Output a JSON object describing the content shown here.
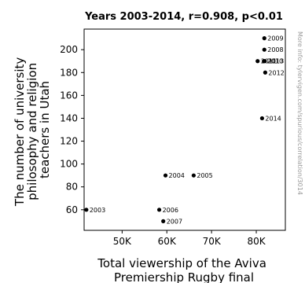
{
  "chart_data": {
    "type": "scatter",
    "title": "Years 2003-2014, r=0.908, p<0.01",
    "xlabel": [
      "Total viewership of the Aviva",
      "Premiership Rugby final"
    ],
    "ylabel": [
      "The number of university",
      "philosophy and religion",
      "teachers in Utah"
    ],
    "xlim": [
      41500,
      86500
    ],
    "ylim": [
      42,
      218
    ],
    "x_ticks": [
      50000,
      60000,
      70000,
      80000
    ],
    "x_tick_labels": [
      "50K",
      "60K",
      "70K",
      "80K"
    ],
    "y_ticks": [
      60,
      80,
      100,
      120,
      140,
      160,
      180,
      200
    ],
    "y_tick_labels": [
      "60",
      "80",
      "100",
      "120",
      "140",
      "160",
      "180",
      "200"
    ],
    "grid": false,
    "point_color": "#000000",
    "points": [
      {
        "label": "2003",
        "x": 42000,
        "y": 60
      },
      {
        "label": "2004",
        "x": 59700,
        "y": 90
      },
      {
        "label": "2005",
        "x": 66000,
        "y": 90
      },
      {
        "label": "2006",
        "x": 58300,
        "y": 60
      },
      {
        "label": "2007",
        "x": 59200,
        "y": 50
      },
      {
        "label": "2008",
        "x": 81800,
        "y": 200
      },
      {
        "label": "2009",
        "x": 81800,
        "y": 210
      },
      {
        "label": "2010",
        "x": 81700,
        "y": 190
      },
      {
        "label": "2011",
        "x": 80300,
        "y": 190
      },
      {
        "label": "2012",
        "x": 82000,
        "y": 180
      },
      {
        "label": "2013",
        "x": 81900,
        "y": 190
      },
      {
        "label": "2014",
        "x": 81300,
        "y": 140
      }
    ]
  },
  "watermark": "More info: tylervigen.com/spurious/correlation/3014"
}
